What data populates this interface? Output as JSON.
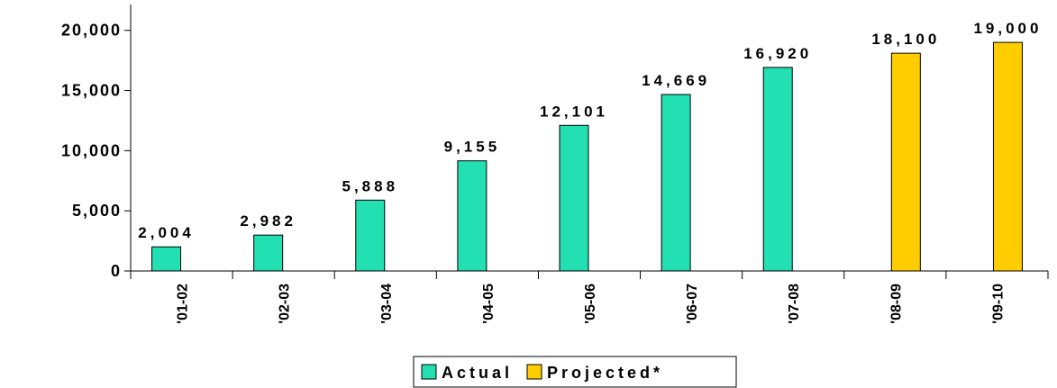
{
  "chart_data": {
    "type": "bar",
    "categories": [
      "'01-02",
      "'02-03",
      "'03-04",
      "'04-05",
      "'05-06",
      "'06-07",
      "'07-08",
      "'08-09",
      "'09-10"
    ],
    "series": [
      {
        "name": "Actual",
        "color": "#22e0b2",
        "values": [
          2004,
          2982,
          5888,
          9155,
          12101,
          14669,
          16920,
          null,
          null
        ],
        "value_labels": [
          "2,004",
          "2,982",
          "5,888",
          "9,155",
          "12,101",
          "14,669",
          "16,920",
          null,
          null
        ]
      },
      {
        "name": "Projected*",
        "color": "#ffcc00",
        "values": [
          null,
          null,
          null,
          null,
          null,
          null,
          null,
          18100,
          19000
        ],
        "value_labels": [
          null,
          null,
          null,
          null,
          null,
          null,
          null,
          "18,100",
          "19,000"
        ]
      }
    ],
    "ylim": [
      0,
      22000
    ],
    "yticks": [
      0,
      {
        "value": 5000,
        "label": "5,000"
      },
      {
        "value": 10000,
        "label": "10,000"
      },
      {
        "value": 15000,
        "label": "15,000"
      },
      {
        "value": 20000,
        "label": "20,000"
      }
    ],
    "legend": "bottom"
  }
}
